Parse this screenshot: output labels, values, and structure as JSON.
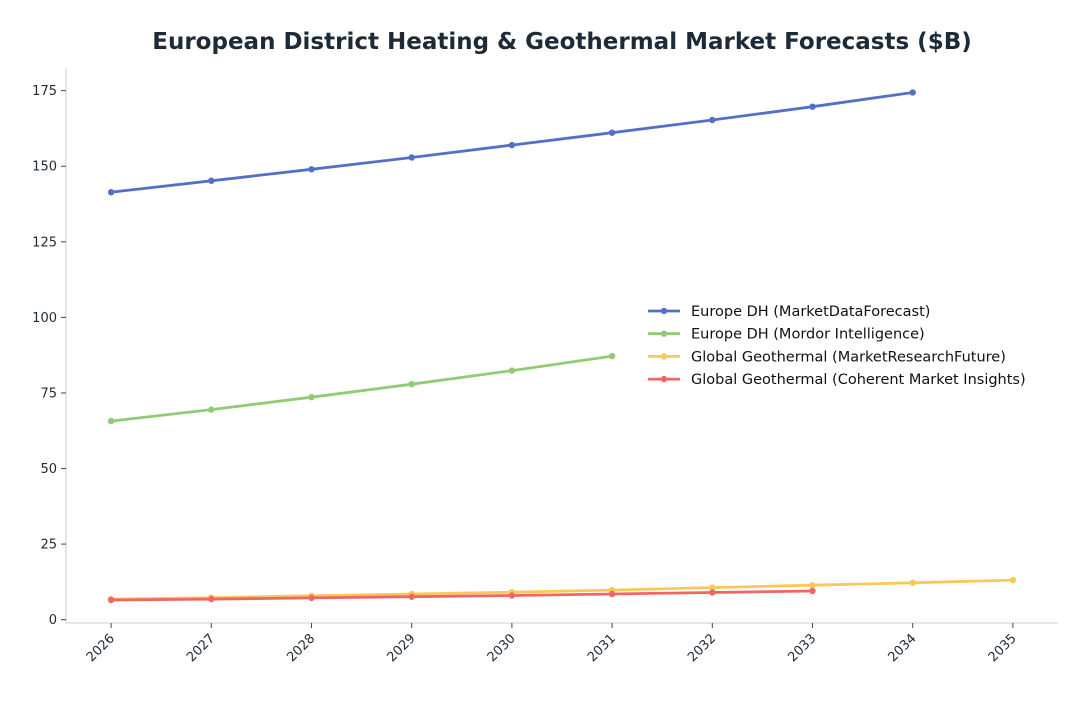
{
  "chart_data": {
    "type": "line",
    "title": "European District Heating & Geothermal Market Forecasts ($B)",
    "xlabel": "",
    "ylabel": "",
    "x": [
      2026,
      2027,
      2028,
      2029,
      2030,
      2031,
      2032,
      2033,
      2034,
      2035
    ],
    "xlim": [
      2025.55,
      2035.45
    ],
    "ylim": [
      -1.1,
      182.5
    ],
    "yticks": [
      0,
      25,
      50,
      75,
      100,
      125,
      150,
      175
    ],
    "grid": false,
    "legend_position": "center-right",
    "series": [
      {
        "name": "Europe DH (MarketDataForecast)",
        "color": "#5470c6",
        "x": [
          2026,
          2027,
          2028,
          2029,
          2030,
          2031,
          2032,
          2033,
          2034
        ],
        "values": [
          141.4,
          145.2,
          149.0,
          152.9,
          157.0,
          161.1,
          165.3,
          169.7,
          174.4
        ]
      },
      {
        "name": "Europe DH (Mordor Intelligence)",
        "color": "#91cc75",
        "x": [
          2026,
          2027,
          2028,
          2029,
          2030,
          2031
        ],
        "values": [
          65.7,
          69.5,
          73.6,
          77.9,
          82.4,
          87.2
        ]
      },
      {
        "name": "Global Geothermal (MarketResearchFuture)",
        "color": "#fac858",
        "x": [
          2026,
          2027,
          2028,
          2029,
          2030,
          2031,
          2032,
          2033,
          2034,
          2035
        ],
        "values": [
          6.8,
          7.3,
          7.9,
          8.5,
          9.1,
          9.8,
          10.6,
          11.4,
          12.2,
          13.1
        ]
      },
      {
        "name": "Global Geothermal (Coherent Market Insights)",
        "color": "#ee6666",
        "x": [
          2026,
          2027,
          2028,
          2029,
          2030,
          2031,
          2032,
          2033
        ],
        "values": [
          6.5,
          6.8,
          7.2,
          7.6,
          8.0,
          8.5,
          9.0,
          9.5
        ]
      }
    ]
  }
}
